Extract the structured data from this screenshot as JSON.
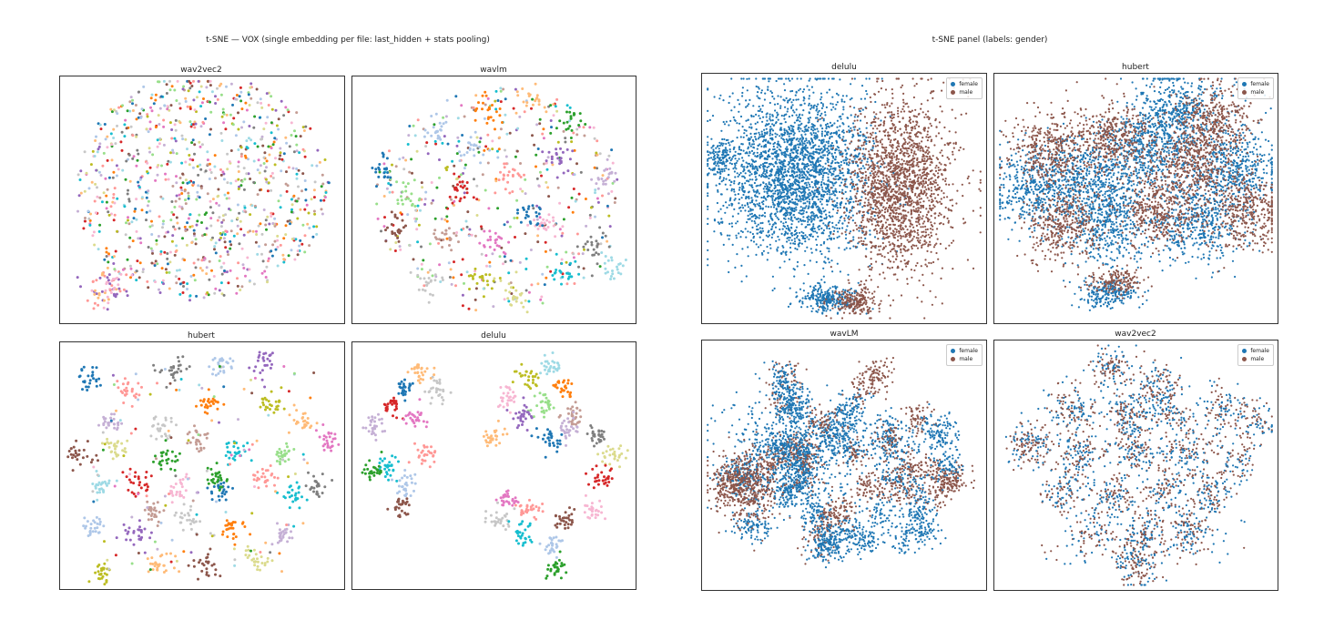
{
  "figures": {
    "left_suptitle": "t-SNE — VOX (single embedding per file: last_hidden + stats pooling)",
    "right_suptitle": "t-SNE panel (labels: gender)"
  },
  "colors": {
    "female": "#1f77b4",
    "male": "#8c564b",
    "speaker_palette": [
      "#1f77b4",
      "#aec7e8",
      "#ff7f0e",
      "#ffbb78",
      "#2ca02c",
      "#98df8a",
      "#d62728",
      "#ff9896",
      "#9467bd",
      "#c5b0d5",
      "#8c564b",
      "#c49c94",
      "#e377c2",
      "#f7b6d2",
      "#7f7f7f",
      "#c7c7c7",
      "#bcbd22",
      "#dbdb8d",
      "#17becf",
      "#9edae5"
    ]
  },
  "chart_data": [
    {
      "type": "scatter",
      "title": "wav2vec2",
      "color_by": "speaker",
      "legend": "none",
      "structure": "one diffuse cloud with speakers thoroughly mixed, plus a small separate cluster at the bottom-left",
      "clusters": [
        {
          "cx": 0.5,
          "cy": 0.45,
          "sx": 0.2,
          "sy": 0.2,
          "share": 0.93,
          "mixed": true
        },
        {
          "cx": 0.16,
          "cy": 0.86,
          "sx": 0.04,
          "sy": 0.04,
          "share": 0.07,
          "colors": [
            3,
            7,
            8,
            13
          ]
        }
      ]
    },
    {
      "type": "scatter",
      "title": "wavlm",
      "color_by": "speaker",
      "legend": "none",
      "structure": "one broad cloud with many small single-speaker clumps"
    },
    {
      "type": "scatter",
      "title": "hubert",
      "color_by": "speaker",
      "legend": "none",
      "structure": "many compact single-speaker clusters scattered across the panel"
    },
    {
      "type": "scatter",
      "title": "delulu",
      "color_by": "speaker",
      "legend": "none",
      "structure": "three large groups (upper-left, upper-right, lower-middle) each made of tight single-speaker clusters"
    },
    {
      "type": "scatter",
      "title": "delulu",
      "legend": "top-right",
      "series": [
        {
          "name": "female",
          "color": "#1f77b4"
        },
        {
          "name": "male",
          "color": "#8c564b"
        }
      ],
      "structure": "female occupies the left mass and male the right mass, with a separate mixed group at the bottom"
    },
    {
      "type": "scatter",
      "title": "hubert",
      "legend": "top-right",
      "series": [
        {
          "name": "female",
          "color": "#1f77b4"
        },
        {
          "name": "male",
          "color": "#8c564b"
        }
      ],
      "structure": "one large cloud with alternating female and male regions, plus a small mixed group at the bottom"
    },
    {
      "type": "scatter",
      "title": "wavLM",
      "legend": "top-right",
      "series": [
        {
          "name": "female",
          "color": "#1f77b4"
        },
        {
          "name": "male",
          "color": "#8c564b"
        }
      ],
      "structure": "a broad cloud made of many small single-gender islands"
    },
    {
      "type": "scatter",
      "title": "wav2vec2",
      "legend": "top-right",
      "series": [
        {
          "name": "female",
          "color": "#1f77b4"
        },
        {
          "name": "male",
          "color": "#8c564b"
        }
      ],
      "structure": "many blob clusters in which female and male points are intermixed"
    }
  ]
}
